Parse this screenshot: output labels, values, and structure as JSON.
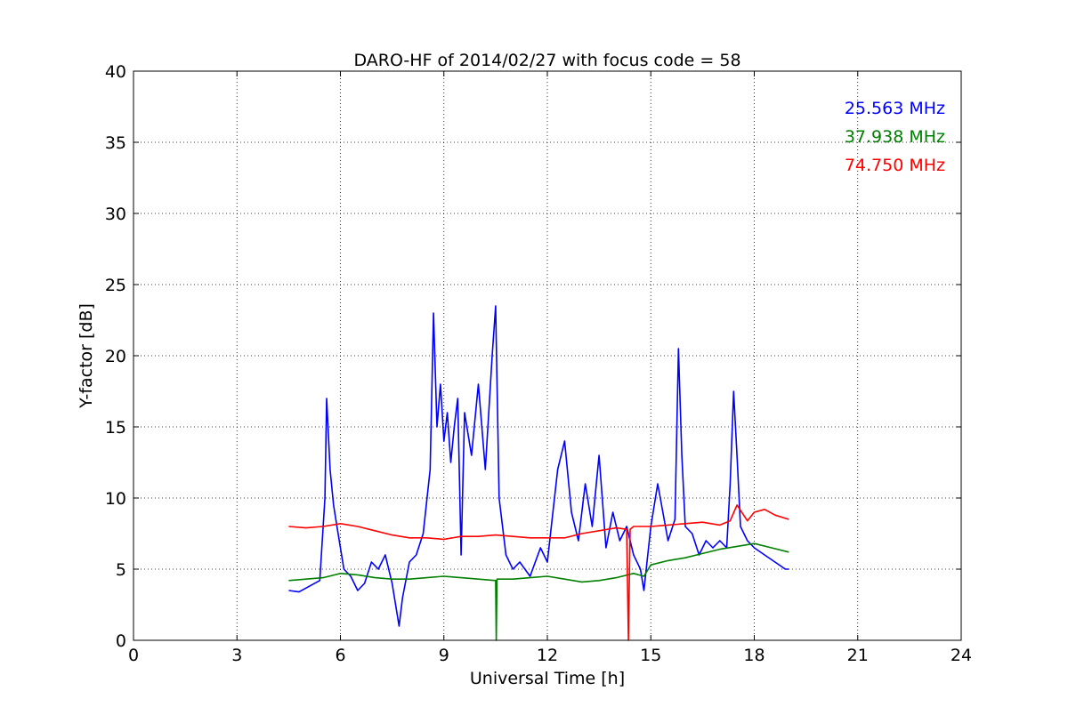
{
  "chart_data": {
    "type": "line",
    "title": "DARO-HF of 2014/02/27 with focus code = 58",
    "xlabel": "Universal Time [h]",
    "ylabel": "Y-factor [dB]",
    "xlim": [
      0,
      24
    ],
    "ylim": [
      0,
      40
    ],
    "xticks": [
      0,
      3,
      6,
      9,
      12,
      15,
      18,
      21,
      24
    ],
    "yticks": [
      0,
      5,
      10,
      15,
      20,
      25,
      30,
      35,
      40
    ],
    "xtick_labels": [
      "0",
      "3",
      "6",
      "9",
      "12",
      "15",
      "18",
      "21",
      "24"
    ],
    "ytick_labels": [
      "0",
      "5",
      "10",
      "15",
      "20",
      "25",
      "30",
      "35",
      "40"
    ],
    "grid": true,
    "legend_position": "top-right",
    "series": [
      {
        "name": "25.563 MHz",
        "color": "#0000ff",
        "x": [
          4.5,
          4.8,
          5.1,
          5.4,
          5.55,
          5.6,
          5.7,
          5.8,
          5.9,
          6.0,
          6.1,
          6.3,
          6.5,
          6.7,
          6.9,
          7.1,
          7.3,
          7.5,
          7.7,
          7.8,
          8.0,
          8.2,
          8.4,
          8.6,
          8.7,
          8.8,
          8.9,
          9.0,
          9.1,
          9.2,
          9.3,
          9.4,
          9.5,
          9.6,
          9.8,
          10.0,
          10.2,
          10.4,
          10.5,
          10.6,
          10.8,
          11.0,
          11.2,
          11.5,
          11.8,
          12.0,
          12.3,
          12.5,
          12.7,
          12.9,
          13.1,
          13.3,
          13.5,
          13.7,
          13.9,
          14.1,
          14.3,
          14.5,
          14.7,
          14.8,
          15.0,
          15.2,
          15.5,
          15.7,
          15.8,
          15.9,
          16.0,
          16.2,
          16.4,
          16.6,
          16.8,
          17.0,
          17.2,
          17.3,
          17.4,
          17.5,
          17.6,
          17.8,
          18.0,
          18.3,
          18.6,
          18.9,
          19.0
        ],
        "y": [
          3.5,
          3.4,
          3.8,
          4.2,
          10.0,
          17.0,
          12.0,
          9.5,
          8.0,
          6.5,
          5.0,
          4.5,
          3.5,
          4.0,
          5.5,
          5.0,
          6.0,
          4.0,
          1.0,
          3.0,
          5.5,
          6.0,
          7.5,
          12.0,
          23.0,
          15.0,
          18.0,
          14.0,
          16.0,
          12.5,
          15.0,
          17.0,
          6.0,
          16.0,
          13.0,
          18.0,
          12.0,
          20.0,
          23.5,
          10.0,
          6.0,
          5.0,
          5.5,
          4.5,
          6.5,
          5.5,
          12.0,
          14.0,
          9.0,
          7.0,
          11.0,
          8.0,
          13.0,
          6.5,
          9.0,
          7.0,
          8.0,
          6.0,
          5.0,
          3.5,
          8.0,
          11.0,
          7.0,
          8.5,
          20.5,
          13.0,
          8.0,
          7.5,
          6.0,
          7.0,
          6.5,
          7.0,
          6.5,
          11.0,
          17.5,
          13.0,
          8.0,
          7.0,
          6.5,
          6.0,
          5.5,
          5.0,
          5.0
        ]
      },
      {
        "name": "37.938 MHz",
        "color": "#008000",
        "x": [
          4.5,
          5.0,
          5.5,
          6.0,
          6.5,
          7.0,
          7.5,
          8.0,
          8.5,
          9.0,
          9.5,
          10.0,
          10.5,
          10.52,
          10.54,
          10.6,
          11.0,
          11.5,
          12.0,
          12.5,
          13.0,
          13.5,
          14.0,
          14.5,
          14.8,
          15.0,
          15.5,
          16.0,
          16.5,
          17.0,
          17.5,
          18.0,
          18.5,
          19.0
        ],
        "y": [
          4.2,
          4.3,
          4.4,
          4.7,
          4.6,
          4.4,
          4.3,
          4.3,
          4.4,
          4.5,
          4.4,
          4.3,
          4.2,
          0.0,
          4.3,
          4.3,
          4.3,
          4.4,
          4.5,
          4.3,
          4.1,
          4.2,
          4.4,
          4.7,
          4.5,
          5.3,
          5.6,
          5.8,
          6.1,
          6.4,
          6.6,
          6.8,
          6.5,
          6.2
        ]
      },
      {
        "name": "74.750 MHz",
        "color": "#ff0000",
        "x": [
          4.5,
          5.0,
          5.5,
          6.0,
          6.5,
          7.0,
          7.5,
          8.0,
          8.5,
          9.0,
          9.5,
          10.0,
          10.5,
          11.0,
          11.5,
          12.0,
          12.5,
          13.0,
          13.5,
          14.0,
          14.3,
          14.35,
          14.4,
          14.5,
          15.0,
          15.5,
          16.0,
          16.5,
          17.0,
          17.3,
          17.5,
          17.8,
          18.0,
          18.3,
          18.6,
          19.0
        ],
        "y": [
          8.0,
          7.9,
          8.0,
          8.2,
          8.0,
          7.7,
          7.4,
          7.2,
          7.2,
          7.1,
          7.3,
          7.3,
          7.4,
          7.3,
          7.2,
          7.2,
          7.2,
          7.5,
          7.7,
          7.9,
          7.8,
          0.0,
          7.8,
          8.0,
          8.0,
          8.1,
          8.2,
          8.3,
          8.1,
          8.4,
          9.5,
          8.4,
          9.0,
          9.2,
          8.8,
          8.5
        ]
      }
    ]
  }
}
